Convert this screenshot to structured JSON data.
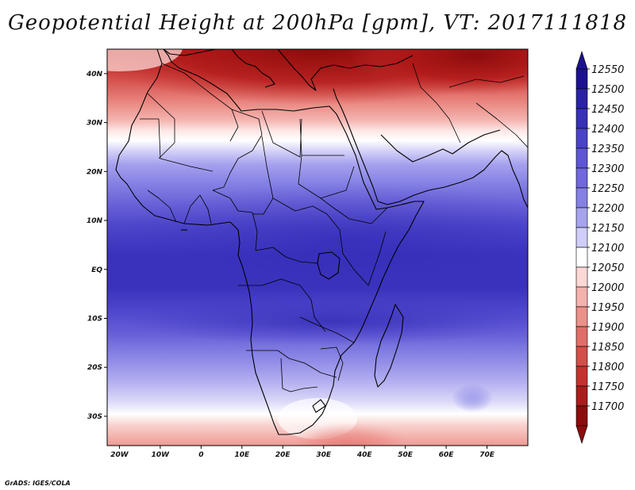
{
  "title": "Geopotential Height at 200hPa [gpm], VT: 2017111818",
  "credit": "GrADS: IGES/COLA",
  "map": {
    "region": "Africa and surrounding oceans",
    "lon_range": [
      -23,
      80
    ],
    "lat_range": [
      -36,
      45
    ],
    "x_ticks": [
      "20W",
      "10W",
      "0",
      "10E",
      "20E",
      "30E",
      "40E",
      "50E",
      "60E",
      "70E"
    ],
    "y_ticks": [
      "40N",
      "30N",
      "20N",
      "10N",
      "EQ",
      "10S",
      "20S",
      "30S"
    ]
  },
  "colorbar": {
    "labels": [
      "12550",
      "12500",
      "12450",
      "12400",
      "12350",
      "12300",
      "12250",
      "12200",
      "12150",
      "12100",
      "12050",
      "12000",
      "11950",
      "11900",
      "11850",
      "11800",
      "11750",
      "11700"
    ],
    "colors": [
      "#1c1290",
      "#2a22a4",
      "#3830b8",
      "#4a42c8",
      "#5e56d4",
      "#7068dc",
      "#8480e4",
      "#a6a4ee",
      "#cfcef8",
      "#ffffff",
      "#fbd8d6",
      "#f4b2ae",
      "#ec908a",
      "#e06e68",
      "#d44e4a",
      "#c43230",
      "#aa1c1c",
      "#8c0c0c"
    ]
  },
  "field_levels": {
    "north_high": "11750",
    "south_high": "12100",
    "tropics": "12450"
  }
}
